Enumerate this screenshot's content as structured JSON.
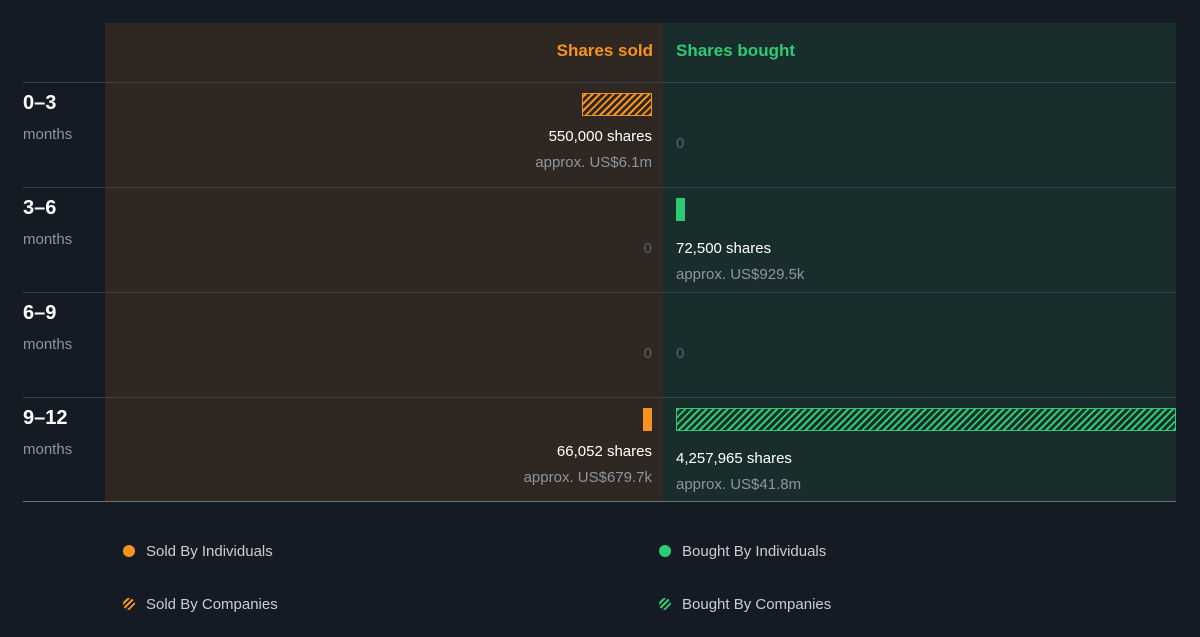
{
  "header": {
    "sold_label": "Shares sold",
    "bought_label": "Shares bought"
  },
  "colors": {
    "sold": "#f7931e",
    "bought": "#2ecc71",
    "sold_panel": "#2f2822",
    "bought_panel": "#192d2d",
    "background": "#151b24"
  },
  "chart_data": {
    "type": "bar",
    "categories": [
      "0–3 months",
      "3–6 months",
      "6–9 months",
      "9–12 months"
    ],
    "series": [
      {
        "name": "Sold By Individuals",
        "values": [
          0,
          0,
          0,
          66052
        ]
      },
      {
        "name": "Sold By Companies",
        "values": [
          550000,
          0,
          0,
          0
        ]
      },
      {
        "name": "Bought By Individuals",
        "values": [
          0,
          72500,
          0,
          0
        ]
      },
      {
        "name": "Bought By Companies",
        "values": [
          0,
          0,
          0,
          4257965
        ]
      }
    ],
    "max_value": 4257965
  },
  "rows": [
    {
      "period": "0–3",
      "unit": "months",
      "sold": {
        "value": 550000,
        "kind": "companies",
        "shares": "550,000 shares",
        "approx": "approx. US$6.1m",
        "zero": ""
      },
      "bought": {
        "value": 0,
        "kind": "",
        "shares": "",
        "approx": "",
        "zero": "0"
      }
    },
    {
      "period": "3–6",
      "unit": "months",
      "sold": {
        "value": 0,
        "kind": "",
        "shares": "",
        "approx": "",
        "zero": "0"
      },
      "bought": {
        "value": 72500,
        "kind": "individuals",
        "shares": "72,500 shares",
        "approx": "approx. US$929.5k",
        "zero": ""
      }
    },
    {
      "period": "6–9",
      "unit": "months",
      "sold": {
        "value": 0,
        "kind": "",
        "shares": "",
        "approx": "",
        "zero": "0"
      },
      "bought": {
        "value": 0,
        "kind": "",
        "shares": "",
        "approx": "",
        "zero": "0"
      }
    },
    {
      "period": "9–12",
      "unit": "months",
      "sold": {
        "value": 66052,
        "kind": "individuals",
        "shares": "66,052 shares",
        "approx": "approx. US$679.7k",
        "zero": ""
      },
      "bought": {
        "value": 4257965,
        "kind": "companies",
        "shares": "4,257,965 shares",
        "approx": "approx. US$41.8m",
        "zero": ""
      }
    }
  ],
  "legend": [
    {
      "label": "Sold By Individuals",
      "marker": "dot-sold"
    },
    {
      "label": "Bought By Individuals",
      "marker": "dot-bought"
    },
    {
      "label": "Sold By Companies",
      "marker": "hatch-sold"
    },
    {
      "label": "Bought By Companies",
      "marker": "hatch-bought"
    }
  ]
}
